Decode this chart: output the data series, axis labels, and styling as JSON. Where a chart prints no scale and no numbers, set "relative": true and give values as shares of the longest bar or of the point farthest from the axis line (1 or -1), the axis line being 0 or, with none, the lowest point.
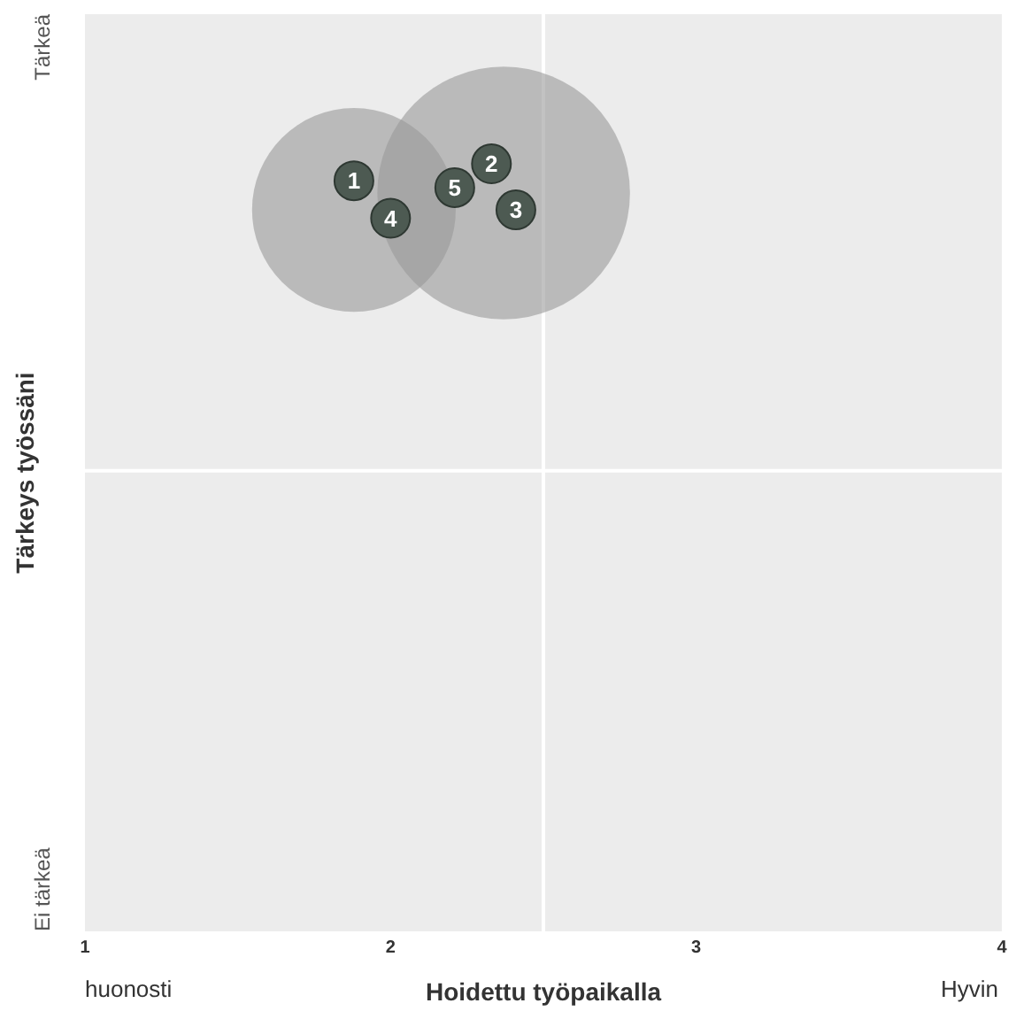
{
  "chart_data": {
    "type": "scatter",
    "relative": true,
    "xlabel": "Hoidettu työpaikalla",
    "ylabel": "Tärkeys työssäni",
    "xlim": [
      1,
      4
    ],
    "xticks": [
      1,
      2,
      3,
      4
    ],
    "legend": false,
    "marker": "circle",
    "series": [
      {
        "type": "bubble",
        "color": "#9a9a9a",
        "x": [
          1.88,
          2.37
        ],
        "values": [
          0.94,
          0.962
        ],
        "sizes": [
          0.65,
          1
        ]
      },
      {
        "name": "1",
        "color": "#4d5a52",
        "x": [
          1.88
        ],
        "values": [
          0.978
        ]
      },
      {
        "name": "2",
        "color": "#4d5a52",
        "x": [
          2.33
        ],
        "values": [
          1
        ]
      },
      {
        "name": "3",
        "color": "#4d5a52",
        "x": [
          2.41
        ],
        "values": [
          0.94
        ]
      },
      {
        "name": "4",
        "color": "#4d5a52",
        "x": [
          2.0
        ],
        "values": [
          0.929
        ]
      },
      {
        "name": "5",
        "color": "#4d5a52",
        "x": [
          2.21
        ],
        "values": [
          0.969
        ]
      }
    ],
    "ref_lines": [
      {
        "axis": "x",
        "value": 2.5,
        "color": "#ffffff"
      },
      {
        "axis": "y",
        "value": 0.6,
        "color": "#ffffff"
      }
    ],
    "annotations": [
      "Tärkeä",
      "Ei tärkeä",
      "huonosti",
      "Hyvin"
    ]
  }
}
